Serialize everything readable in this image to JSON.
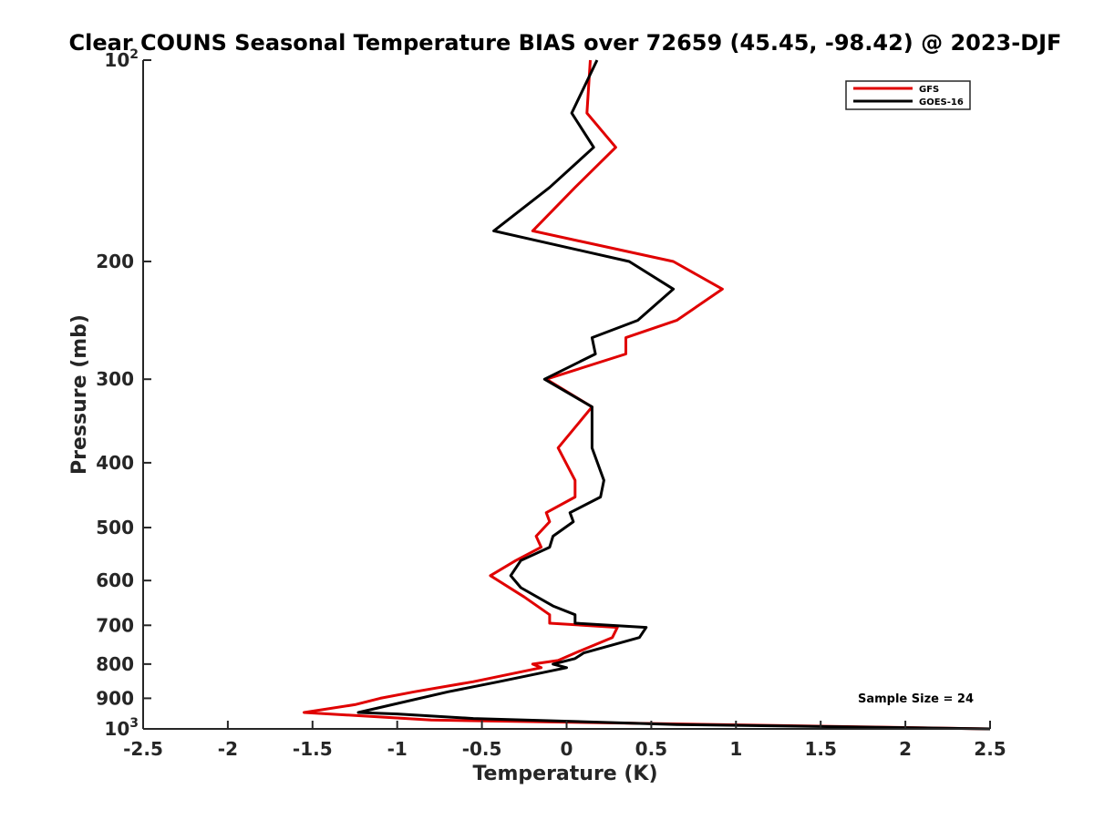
{
  "chart_data": {
    "type": "line",
    "title": "Clear COUNS Seasonal Temperature BIAS over 72659 (45.45, -98.42) @ 2023-DJF",
    "xlabel": "Temperature (K)",
    "ylabel": "Pressure (mb)",
    "xlim": [
      -2.5,
      2.5
    ],
    "ylim": [
      100,
      1000
    ],
    "y_scale": "log",
    "y_reversed": true,
    "x_ticks": [
      {
        "value": -2.5,
        "label": "-2.5"
      },
      {
        "value": -2,
        "label": "-2"
      },
      {
        "value": -1.5,
        "label": "-1.5"
      },
      {
        "value": -1,
        "label": "-1"
      },
      {
        "value": -0.5,
        "label": "-0.5"
      },
      {
        "value": 0,
        "label": "0"
      },
      {
        "value": 0.5,
        "label": "0.5"
      },
      {
        "value": 1,
        "label": "1"
      },
      {
        "value": 1.5,
        "label": "1.5"
      },
      {
        "value": 2,
        "label": "2"
      },
      {
        "value": 2.5,
        "label": "2.5"
      }
    ],
    "y_ticks": [
      {
        "value": 100,
        "label": "10",
        "sup": "2"
      },
      {
        "value": 200,
        "label": "200"
      },
      {
        "value": 300,
        "label": "300"
      },
      {
        "value": 400,
        "label": "400"
      },
      {
        "value": 500,
        "label": "500"
      },
      {
        "value": 600,
        "label": "600"
      },
      {
        "value": 700,
        "label": "700"
      },
      {
        "value": 800,
        "label": "800"
      },
      {
        "value": 900,
        "label": "900"
      },
      {
        "value": 1000,
        "label": "10",
        "sup": "3"
      }
    ],
    "legend_position": "top-right",
    "grid": false,
    "series": [
      {
        "name": "GFS",
        "color": "#e00000",
        "points": [
          [
            0.14,
            100
          ],
          [
            0.12,
            120
          ],
          [
            0.29,
            135
          ],
          [
            0.05,
            155
          ],
          [
            -0.2,
            180
          ],
          [
            0.63,
            200
          ],
          [
            0.92,
            220
          ],
          [
            0.65,
            245
          ],
          [
            0.35,
            260
          ],
          [
            0.35,
            275
          ],
          [
            -0.12,
            300
          ],
          [
            0.15,
            330
          ],
          [
            -0.05,
            380
          ],
          [
            0.05,
            425
          ],
          [
            0.05,
            450
          ],
          [
            -0.12,
            475
          ],
          [
            -0.1,
            490
          ],
          [
            -0.18,
            515
          ],
          [
            -0.15,
            535
          ],
          [
            -0.3,
            560
          ],
          [
            -0.45,
            590
          ],
          [
            -0.25,
            635
          ],
          [
            -0.1,
            675
          ],
          [
            -0.1,
            695
          ],
          [
            0.3,
            705
          ],
          [
            0.27,
            730
          ],
          [
            0.05,
            770
          ],
          [
            -0.05,
            790
          ],
          [
            -0.2,
            800
          ],
          [
            -0.15,
            810
          ],
          [
            -0.55,
            850
          ],
          [
            -0.9,
            880
          ],
          [
            -1.1,
            900
          ],
          [
            -1.25,
            920
          ],
          [
            -1.55,
            945
          ],
          [
            -1.25,
            955
          ],
          [
            -0.8,
            970
          ],
          [
            2.5,
            1000
          ]
        ]
      },
      {
        "name": "GOES-16",
        "color": "#000000",
        "points": [
          [
            0.18,
            100
          ],
          [
            0.03,
            120
          ],
          [
            0.16,
            135
          ],
          [
            -0.1,
            155
          ],
          [
            -0.43,
            180
          ],
          [
            0.37,
            200
          ],
          [
            0.63,
            220
          ],
          [
            0.42,
            245
          ],
          [
            0.15,
            260
          ],
          [
            0.17,
            275
          ],
          [
            -0.13,
            300
          ],
          [
            0.15,
            330
          ],
          [
            0.15,
            380
          ],
          [
            0.22,
            425
          ],
          [
            0.2,
            450
          ],
          [
            0.02,
            475
          ],
          [
            0.04,
            490
          ],
          [
            -0.08,
            515
          ],
          [
            -0.1,
            535
          ],
          [
            -0.27,
            560
          ],
          [
            -0.33,
            590
          ],
          [
            -0.27,
            615
          ],
          [
            -0.08,
            655
          ],
          [
            0.05,
            675
          ],
          [
            0.05,
            695
          ],
          [
            0.47,
            705
          ],
          [
            0.43,
            730
          ],
          [
            0.1,
            770
          ],
          [
            0.05,
            785
          ],
          [
            -0.08,
            800
          ],
          [
            0,
            810
          ],
          [
            -0.4,
            850
          ],
          [
            -0.7,
            880
          ],
          [
            -1.23,
            945
          ],
          [
            -1.0,
            950
          ],
          [
            -0.55,
            965
          ],
          [
            0.65,
            985
          ],
          [
            2.5,
            1000
          ]
        ]
      }
    ],
    "annotations": [
      {
        "text": "Sample Size = 24"
      }
    ]
  }
}
